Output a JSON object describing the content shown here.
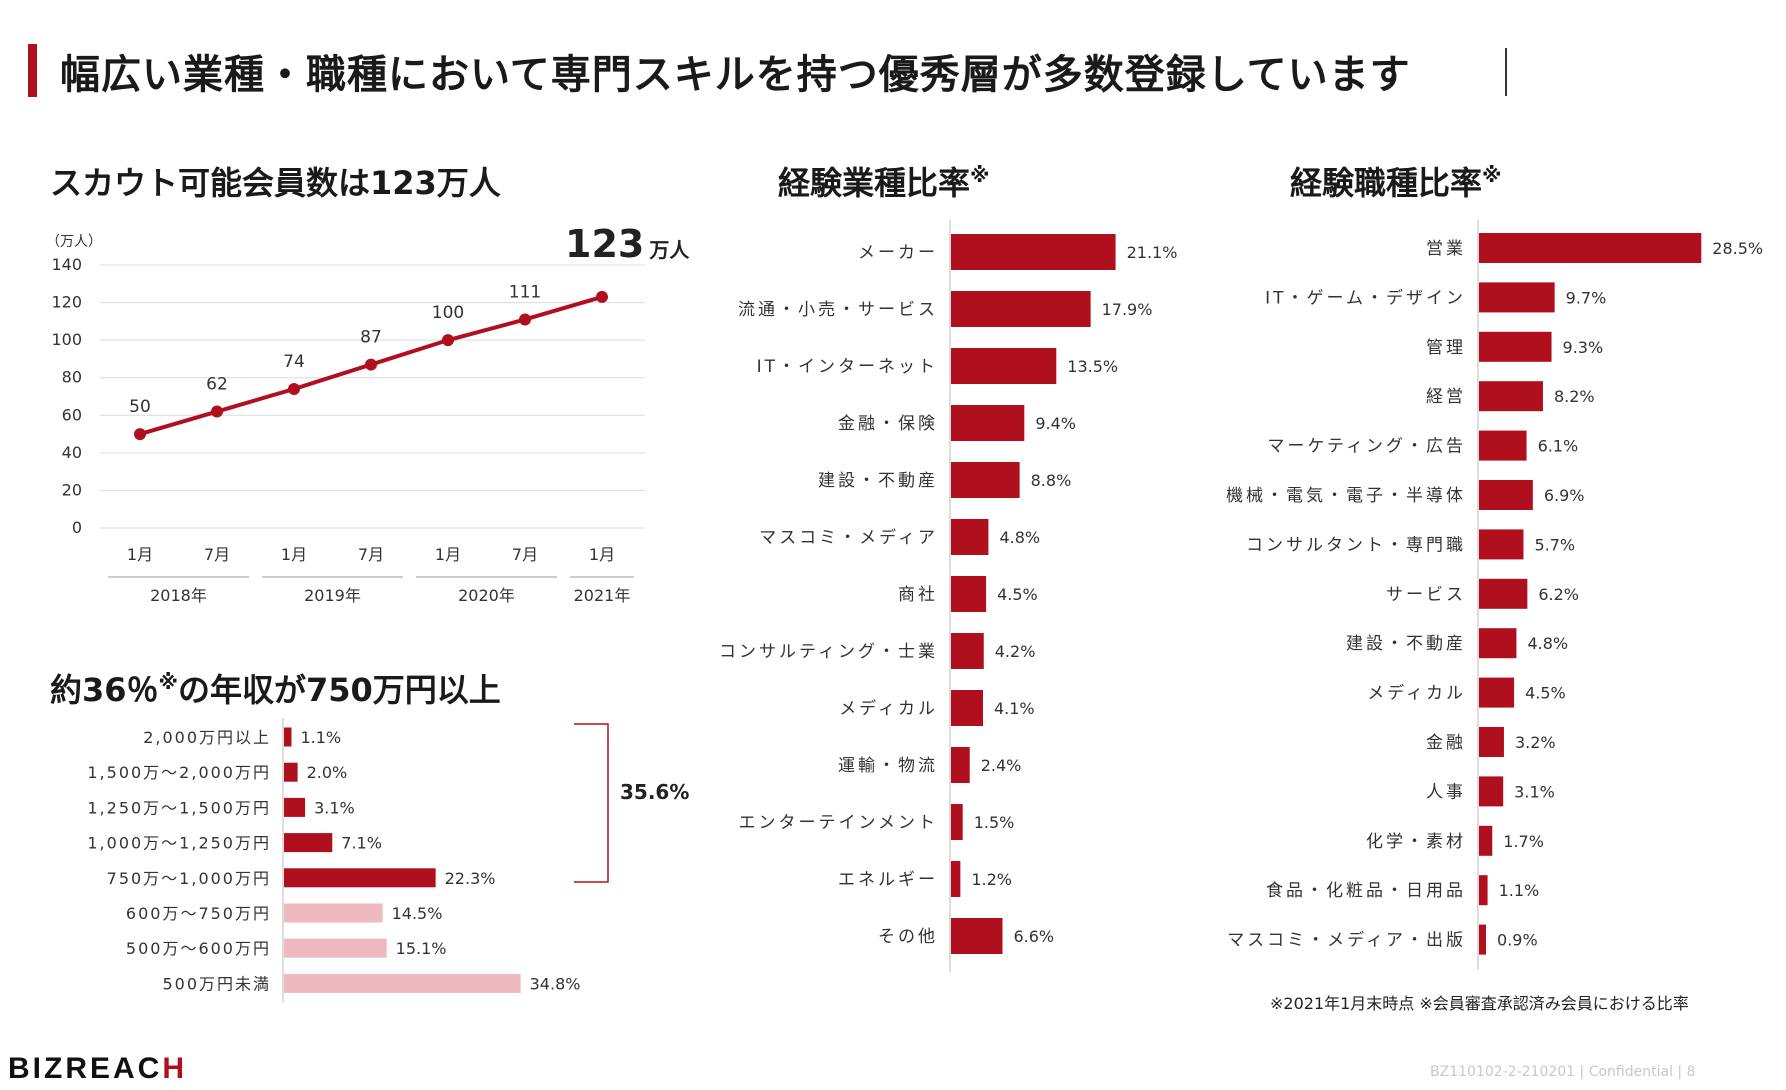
{
  "page_title": "幅広い業種・職種において専門スキルを持つ優秀層が多数登録しています",
  "colors": {
    "accent": "#b0101d",
    "light_bar": "#efb9c0",
    "grid": "#dcdcdc"
  },
  "line_section": {
    "title": "スカウト可能会員数は123万人",
    "highlight_value": "123",
    "highlight_unit": "万人"
  },
  "industry_section": {
    "title": "経験業種比率",
    "mark": "※"
  },
  "occupation_section": {
    "title": "経験職種比率",
    "mark": "※"
  },
  "income_section": {
    "title_prefix": "約36％",
    "title_mark": "※",
    "title_suffix": "の年収が750万円以上",
    "bracket_total": "35.6%"
  },
  "footnote": "※2021年1月末時点  ※会員審査承認済み会員における比率",
  "logo": {
    "main": "BIZREAC",
    "accent": "H"
  },
  "footer": "BZ110102-2-210201   |   Confidential   |        8",
  "chart_data": [
    {
      "id": "members",
      "type": "line",
      "title": "スカウト可能会員数は123万人",
      "ylabel": "（万人）",
      "ylim": [
        0,
        140
      ],
      "yticks": [
        0,
        20,
        40,
        60,
        80,
        100,
        120,
        140
      ],
      "categories": [
        "1月",
        "7月",
        "1月",
        "7月",
        "1月",
        "7月",
        "1月"
      ],
      "year_groups": [
        {
          "label": "2018年",
          "span": [
            0,
            1
          ]
        },
        {
          "label": "2019年",
          "span": [
            2,
            3
          ]
        },
        {
          "label": "2020年",
          "span": [
            4,
            5
          ]
        },
        {
          "label": "2021年",
          "span": [
            6,
            6
          ]
        }
      ],
      "values": [
        50,
        62,
        74,
        87,
        100,
        111,
        123
      ],
      "grid": true
    },
    {
      "id": "income",
      "type": "bar",
      "orientation": "horizontal",
      "title": "約36％※の年収が750万円以上",
      "categories": [
        "2,000万円以上",
        "1,500万～2,000万円",
        "1,250万～1,500万円",
        "1,000万～1,250万円",
        "750万～1,000万円",
        "600万～750万円",
        "500万～600万円",
        "500万円未満"
      ],
      "values": [
        1.1,
        2.0,
        3.1,
        7.1,
        22.3,
        14.5,
        15.1,
        34.8
      ],
      "labels": [
        "1.1%",
        "2.0%",
        "3.1%",
        "7.1%",
        "22.3%",
        "14.5%",
        "15.1%",
        "34.8%"
      ],
      "highlight": [
        true,
        true,
        true,
        true,
        true,
        false,
        false,
        false
      ]
    },
    {
      "id": "industry",
      "type": "bar",
      "orientation": "horizontal",
      "title": "経験業種比率",
      "categories": [
        "メーカー",
        "流通・小売・サービス",
        "IT・インターネット",
        "金融・保険",
        "建設・不動産",
        "マスコミ・メディア",
        "商社",
        "コンサルティング・士業",
        "メディカル",
        "運輸・物流",
        "エンターテインメント",
        "エネルギー",
        "その他"
      ],
      "values": [
        21.1,
        17.9,
        13.5,
        9.4,
        8.8,
        4.8,
        4.5,
        4.2,
        4.1,
        2.4,
        1.5,
        1.2,
        6.6
      ],
      "labels": [
        "21.1%",
        "17.9%",
        "13.5%",
        "9.4%",
        "8.8%",
        "4.8%",
        "4.5%",
        "4.2%",
        "4.1%",
        "2.4%",
        "1.5%",
        "1.2%",
        "6.6%"
      ]
    },
    {
      "id": "occupation",
      "type": "bar",
      "orientation": "horizontal",
      "title": "経験職種比率",
      "categories": [
        "営業",
        "IT・ゲーム・デザイン",
        "管理",
        "経営",
        "マーケティング・広告",
        "機械・電気・電子・半導体",
        "コンサルタント・専門職",
        "サービス",
        "建設・不動産",
        "メディカル",
        "金融",
        "人事",
        "化学・素材",
        "食品・化粧品・日用品",
        "マスコミ・メディア・出版"
      ],
      "values": [
        28.5,
        9.7,
        9.3,
        8.2,
        6.1,
        6.9,
        5.7,
        6.2,
        4.8,
        4.5,
        3.2,
        3.1,
        1.7,
        1.1,
        0.9
      ],
      "labels": [
        "28.5%",
        "9.7%",
        "9.3%",
        "8.2%",
        "6.1%",
        "6.9%",
        "5.7%",
        "6.2%",
        "4.8%",
        "4.5%",
        "3.2%",
        "3.1%",
        "1.7%",
        "1.1%",
        "0.9%"
      ]
    }
  ]
}
